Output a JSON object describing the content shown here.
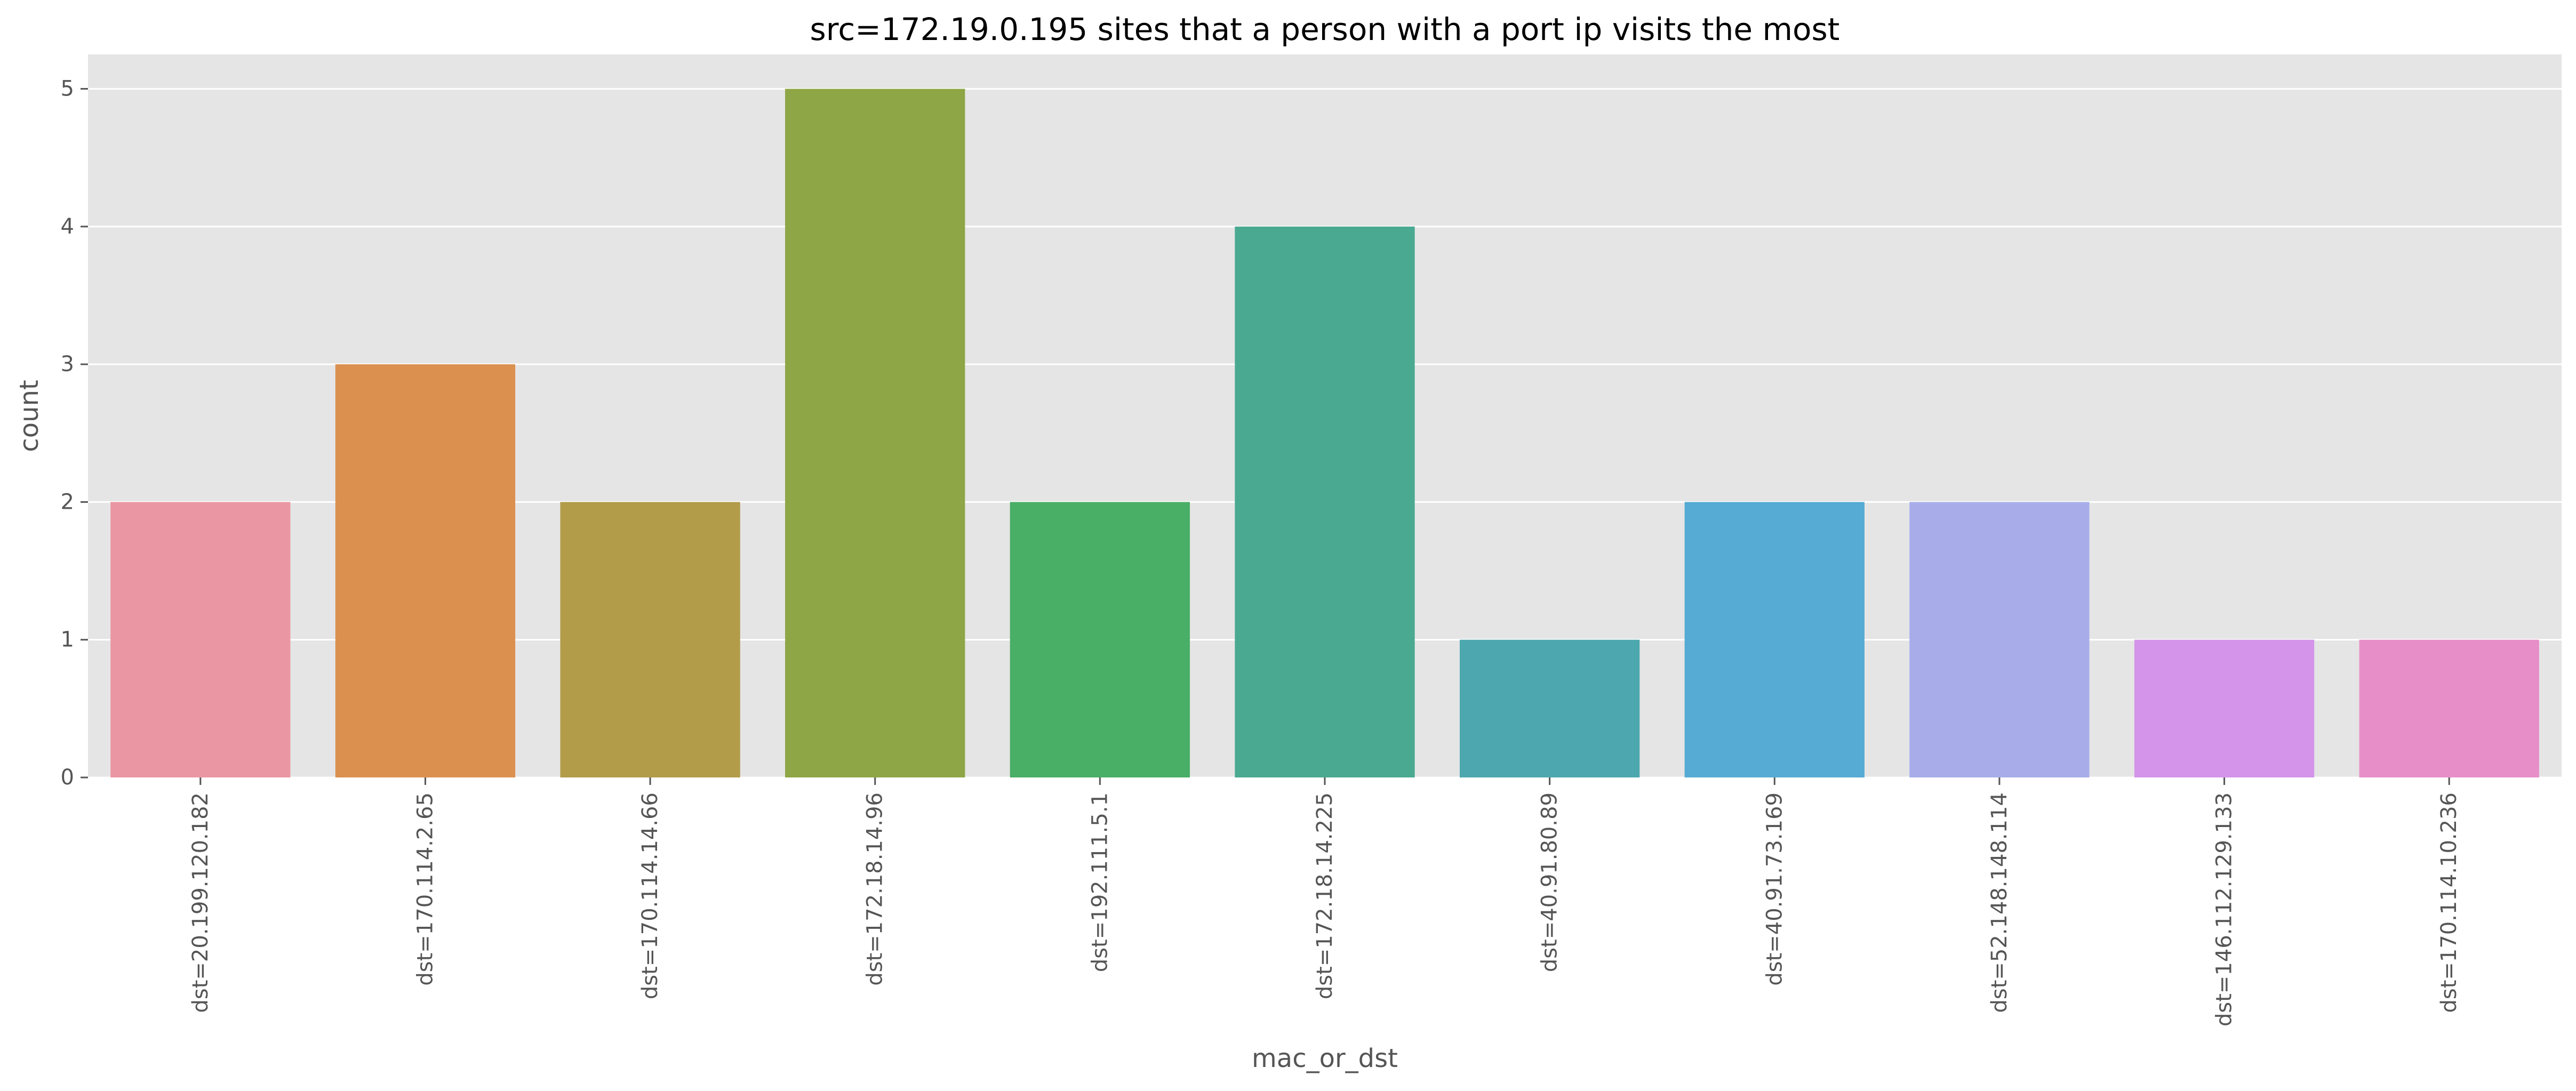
{
  "chart_data": {
    "type": "bar",
    "title": "src=172.19.0.195 sites that a person with a port ip visits the most",
    "xlabel": "mac_or_dst",
    "ylabel": "count",
    "ylim": [
      0,
      5.25
    ],
    "yticks": [
      0,
      1,
      2,
      3,
      4,
      5
    ],
    "grid": true,
    "categories": [
      "dst=20.199.120.182",
      "dst=170.114.2.65",
      "dst=170.114.14.66",
      "dst=172.18.14.96",
      "dst=192.111.5.1",
      "dst=172.18.14.225",
      "dst=40.91.80.89",
      "dst=40.91.73.169",
      "dst=52.148.148.114",
      "dst=146.112.129.133",
      "dst=170.114.10.236"
    ],
    "values": [
      2,
      3,
      2,
      5,
      2,
      4,
      1,
      2,
      2,
      1,
      1
    ],
    "colors": [
      "#EA96A3",
      "#DB904F",
      "#B29C4A",
      "#8EA645",
      "#49AE66",
      "#4AA991",
      "#4CA8AE",
      "#55ABD3",
      "#A8ADEA",
      "#D494E9",
      "#E78EC9"
    ],
    "background_color": "#E5E5E5",
    "grid_color": "#FFFFFF",
    "text_color": "#555555"
  }
}
